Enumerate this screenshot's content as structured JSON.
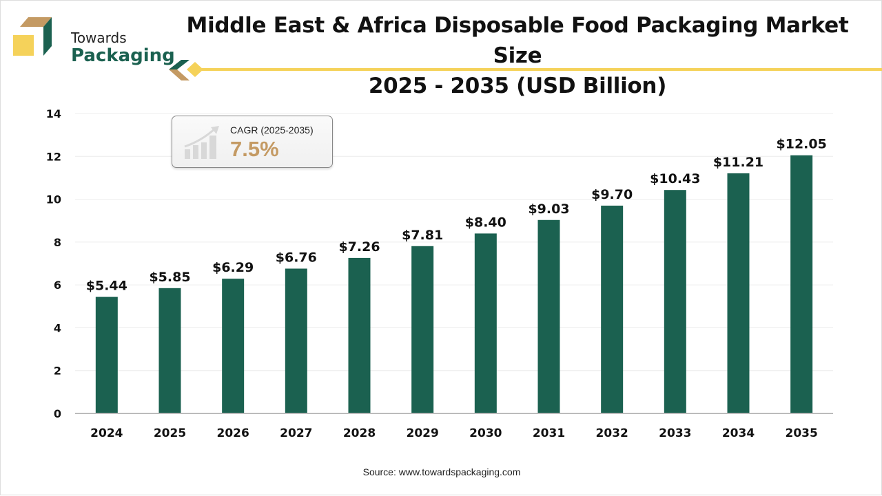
{
  "brand": {
    "line1": "Towards",
    "line2": "Packaging"
  },
  "title_line1": "Middle East & Africa Disposable Food Packaging Market Size",
  "title_line2": "2025 - 2035 (USD Billion)",
  "cagr": {
    "label": "CAGR (2025-2035)",
    "value": "7.5%",
    "icon": "growth-chart-icon"
  },
  "source": "Source: www.towardspackaging.com",
  "colors": {
    "bar": "#1b6150",
    "accent": "#f5d25a",
    "cagr": "#c49a63",
    "brown": "#c49a63"
  },
  "chart_data": {
    "type": "bar",
    "categories": [
      "2024",
      "2025",
      "2026",
      "2027",
      "2028",
      "2029",
      "2030",
      "2031",
      "2032",
      "2033",
      "2034",
      "2035"
    ],
    "values": [
      5.44,
      5.85,
      6.29,
      6.76,
      7.26,
      7.81,
      8.4,
      9.03,
      9.7,
      10.43,
      11.21,
      12.05
    ],
    "data_labels": [
      "$5.44",
      "$5.85",
      "$6.29",
      "$6.76",
      "$7.26",
      "$7.81",
      "$8.40",
      "$9.03",
      "$9.70",
      "$10.43",
      "$11.21",
      "$12.05"
    ],
    "yticks": [
      "0",
      "2",
      "4",
      "6",
      "8",
      "10",
      "12",
      "14"
    ],
    "ylim": [
      0,
      14
    ],
    "grid": true,
    "xlabel": "",
    "ylabel": ""
  }
}
